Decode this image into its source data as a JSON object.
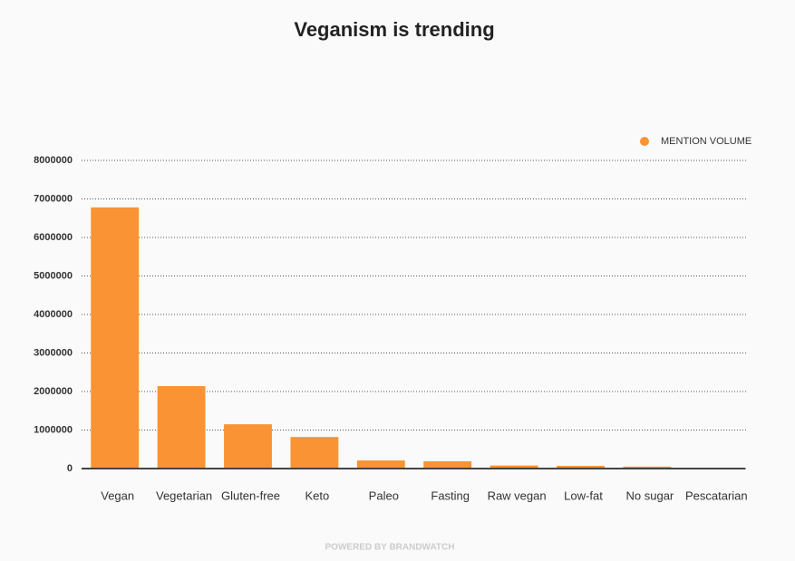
{
  "chart_data": {
    "type": "bar",
    "title": "Veganism is trending",
    "categories": [
      "Vegan",
      "Vegetarian",
      "Gluten-free",
      "Keto",
      "Paleo",
      "Fasting",
      "Raw vegan",
      "Low-fat",
      "No sugar",
      "Pescatarian"
    ],
    "series": [
      {
        "name": "MENTION VOLUME",
        "color": "#f99333",
        "values": [
          6780000,
          2140000,
          1150000,
          820000,
          210000,
          190000,
          80000,
          70000,
          50000,
          10000
        ]
      }
    ],
    "ylim": [
      0,
      8000000
    ],
    "yticks": [
      0,
      1000000,
      2000000,
      3000000,
      4000000,
      5000000,
      6000000,
      7000000,
      8000000
    ],
    "grid": true,
    "legend": "top-right",
    "footer": "POWERED BY BRANDWATCH"
  }
}
